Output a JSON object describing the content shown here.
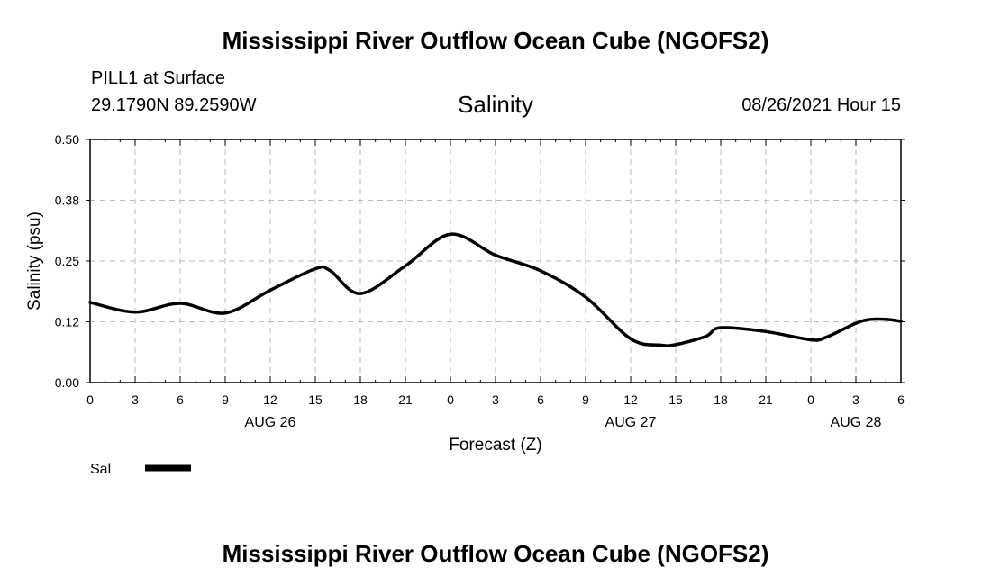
{
  "header": {
    "title_top": "Mississippi River Outflow Ocean Cube (NGOFS2)",
    "station_line": "PILL1 at Surface",
    "coords_line": "29.1790N  89.2590W",
    "variable": "Salinity",
    "datetime": "08/26/2021 Hour 15"
  },
  "footer": {
    "title_bottom": "Mississippi River Outflow Ocean Cube (NGOFS2)"
  },
  "chart_data": {
    "type": "line",
    "xlabel": "Forecast (Z)",
    "ylabel": "Salinity (psu)",
    "ylim": [
      0,
      0.5
    ],
    "y_ticks": [
      "0.00",
      "0.12",
      "0.25",
      "0.38",
      "0.50"
    ],
    "y_tick_values": [
      0,
      0.125,
      0.25,
      0.375,
      0.5
    ],
    "xlim": [
      0,
      54
    ],
    "x_tick_values": [
      0,
      3,
      6,
      9,
      12,
      15,
      18,
      21,
      24,
      27,
      30,
      33,
      36,
      39,
      42,
      45,
      48,
      51,
      54
    ],
    "x_tick_labels": [
      "0",
      "3",
      "6",
      "9",
      "12",
      "15",
      "18",
      "21",
      "0",
      "3",
      "6",
      "9",
      "12",
      "15",
      "18",
      "21",
      "0",
      "3",
      "6"
    ],
    "date_labels": [
      {
        "x": 12,
        "text": "AUG 26"
      },
      {
        "x": 36,
        "text": "AUG 27"
      },
      {
        "x": 51,
        "text": "AUG 28"
      }
    ],
    "grid": true,
    "series": [
      {
        "name": "Sal",
        "color": "#000000",
        "x": [
          0,
          3,
          6,
          9,
          12,
          15,
          16,
          18,
          21,
          24,
          27,
          30,
          33,
          36,
          38,
          39,
          41,
          42,
          45,
          48,
          49,
          51,
          52,
          53,
          54
        ],
        "values": [
          0.165,
          0.145,
          0.163,
          0.143,
          0.19,
          0.234,
          0.23,
          0.183,
          0.24,
          0.305,
          0.262,
          0.23,
          0.176,
          0.09,
          0.077,
          0.078,
          0.095,
          0.113,
          0.105,
          0.088,
          0.093,
          0.122,
          0.13,
          0.13,
          0.126
        ]
      }
    ],
    "legend": {
      "position": "bottom-left",
      "label": "Sal"
    }
  }
}
